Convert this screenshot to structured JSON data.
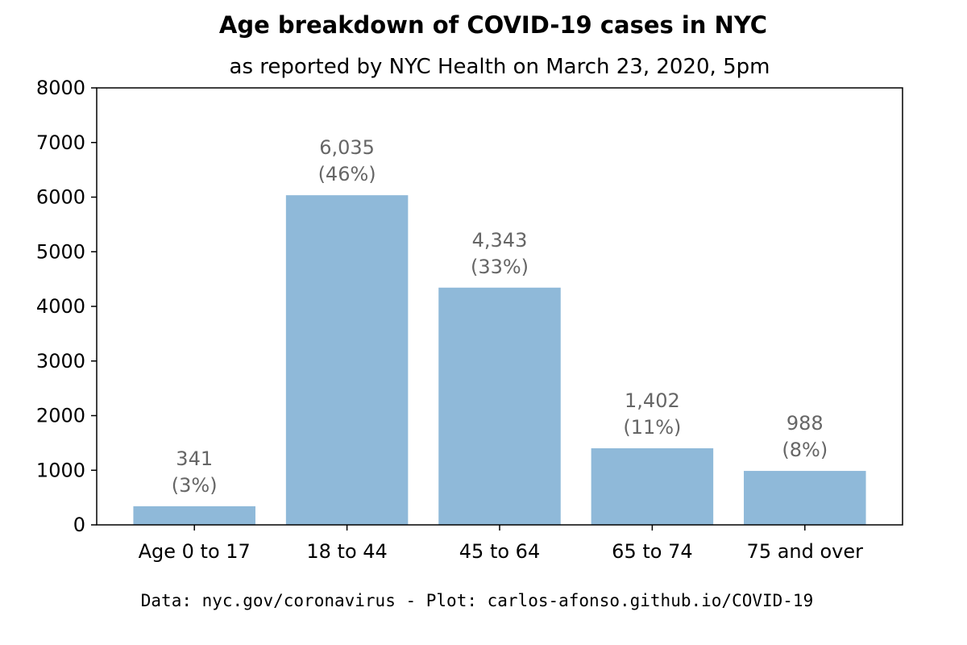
{
  "chart_data": {
    "type": "bar",
    "title": "Age breakdown of COVID-19 cases in NYC",
    "subtitle": "as reported by NYC Health on March 23, 2020, 5pm",
    "categories": [
      "Age 0 to 17",
      "18 to 44",
      "45 to 64",
      "65 to 74",
      "75 and over"
    ],
    "values": [
      341,
      6035,
      4343,
      1402,
      988
    ],
    "value_labels": [
      "341",
      "6,035",
      "4,343",
      "1,402",
      "988"
    ],
    "percent_labels": [
      "(3%)",
      "(46%)",
      "(33%)",
      "(11%)",
      "(8%)"
    ],
    "xlabel": "",
    "ylabel": "",
    "ylim": [
      0,
      8000
    ],
    "yticks": [
      "0",
      "1000",
      "2000",
      "3000",
      "4000",
      "5000",
      "6000",
      "7000",
      "8000"
    ],
    "grid": false,
    "legend": "none",
    "colors": {
      "bar": "#8fb9d9",
      "data_label": "#666666",
      "axis": "#000000"
    }
  },
  "footer": "Data: nyc.gov/coronavirus - Plot: carlos-afonso.github.io/COVID-19"
}
